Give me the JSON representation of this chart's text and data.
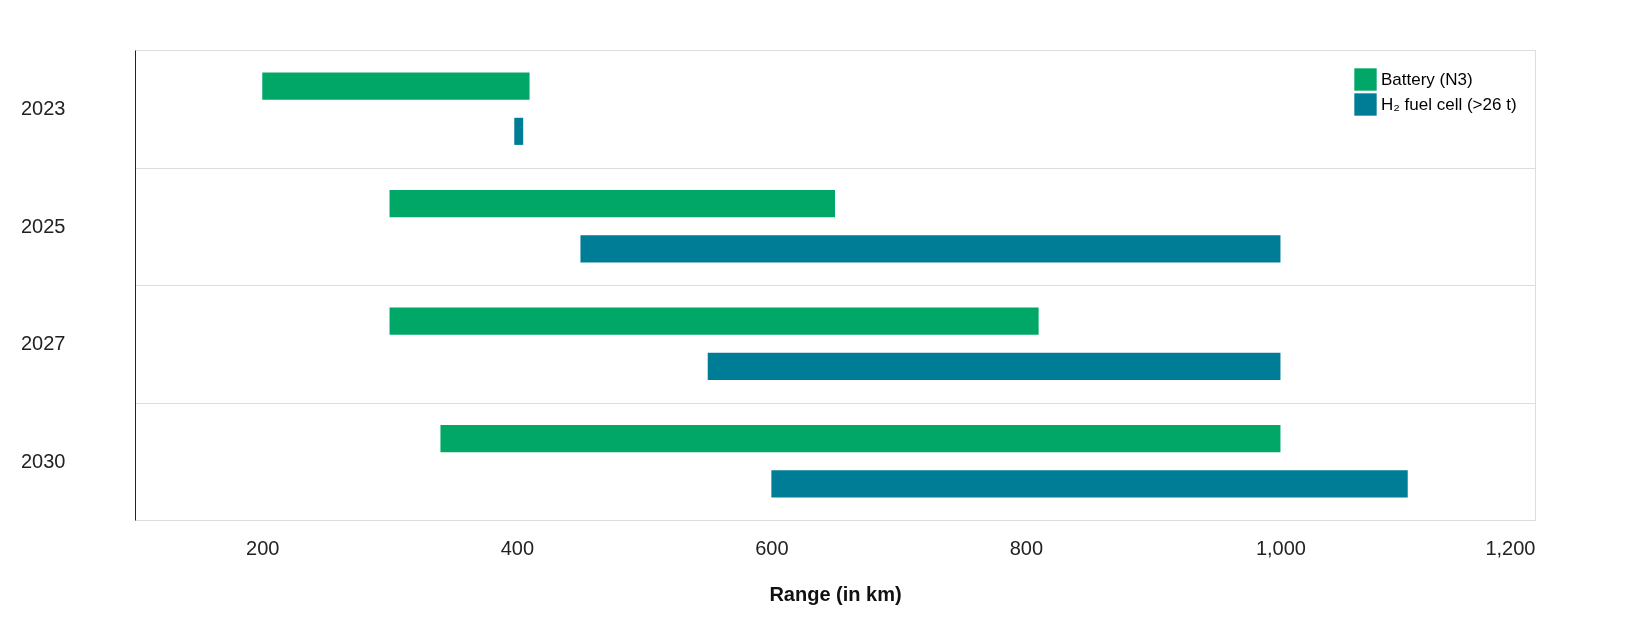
{
  "chart_data": {
    "type": "bar",
    "orientation": "horizontal",
    "xlabel": "Range (in km)",
    "categories": [
      "2023",
      "2025",
      "2027",
      "2030"
    ],
    "series": [
      {
        "name": "Battery (N3)",
        "color": "#00a767",
        "base": [
          200,
          300,
          300,
          340
        ],
        "values": [
          210,
          350,
          510,
          660
        ]
      },
      {
        "name": "H₂ fuel cell (>26 t)",
        "color": "#007d96",
        "base": [
          398,
          450,
          550,
          600
        ],
        "values": [
          7,
          550,
          450,
          500
        ]
      }
    ],
    "xlim": [
      100,
      1200
    ],
    "xticks": [
      200,
      400,
      600,
      800,
      {
        "value": 1000,
        "label": "1,000"
      },
      {
        "value": 1200,
        "label": "1,200"
      }
    ],
    "grid": "y",
    "legend": "top right"
  }
}
